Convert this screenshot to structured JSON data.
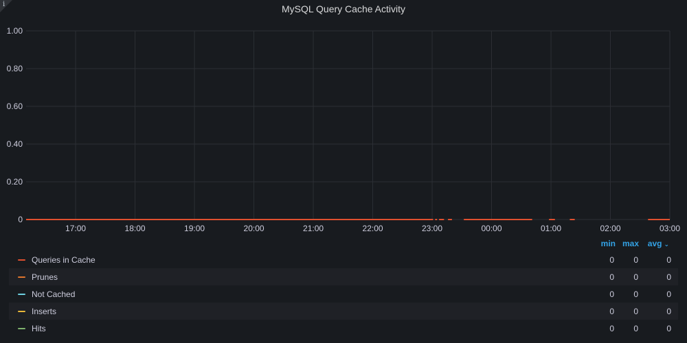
{
  "panel": {
    "title": "MySQL Query Cache Activity",
    "info_glyph": "i"
  },
  "legend": {
    "headers": {
      "min": "min",
      "max": "max",
      "avg": "avg"
    },
    "sort_indicator": "chevron-down-icon",
    "items": [
      {
        "name": "Queries in Cache",
        "color": "#e0502f",
        "min": "0",
        "max": "0",
        "avg": "0"
      },
      {
        "name": "Prunes",
        "color": "#e0752d",
        "min": "0",
        "max": "0",
        "avg": "0"
      },
      {
        "name": "Not Cached",
        "color": "#6ed0e0",
        "min": "0",
        "max": "0",
        "avg": "0"
      },
      {
        "name": "Inserts",
        "color": "#eab839",
        "min": "0",
        "max": "0",
        "avg": "0"
      },
      {
        "name": "Hits",
        "color": "#7eb26d",
        "min": "0",
        "max": "0",
        "avg": "0"
      }
    ]
  },
  "chart_data": {
    "type": "line",
    "title": "MySQL Query Cache Activity",
    "xlabel": "",
    "ylabel": "",
    "x_ticks": [
      "17:00",
      "18:00",
      "19:00",
      "20:00",
      "21:00",
      "22:00",
      "23:00",
      "00:00",
      "01:00",
      "02:00",
      "03:00"
    ],
    "y_ticks": [
      "0",
      "0.20",
      "0.40",
      "0.60",
      "0.80",
      "1.00"
    ],
    "ylim": [
      0,
      1
    ],
    "grid": true,
    "legend_position": "bottom",
    "series": [
      {
        "name": "Queries in Cache",
        "color": "#e0502f",
        "segments": [
          [
            "16:10",
            "23:01"
          ],
          [
            "23:03",
            "23:05"
          ],
          [
            "23:07",
            "23:12"
          ],
          [
            "23:16",
            "23:20"
          ],
          [
            "23:32",
            "00:41"
          ],
          [
            "00:58",
            "01:04"
          ],
          [
            "01:19",
            "01:24"
          ],
          [
            "02:38",
            "03:00"
          ]
        ],
        "value": 0
      },
      {
        "name": "Prunes",
        "color": "#e0752d",
        "segments": [],
        "value": 0
      },
      {
        "name": "Not Cached",
        "color": "#6ed0e0",
        "segments": [],
        "value": 0
      },
      {
        "name": "Inserts",
        "color": "#eab839",
        "segments": [],
        "value": 0
      },
      {
        "name": "Hits",
        "color": "#7eb26d",
        "segments": [],
        "value": 0
      }
    ]
  }
}
